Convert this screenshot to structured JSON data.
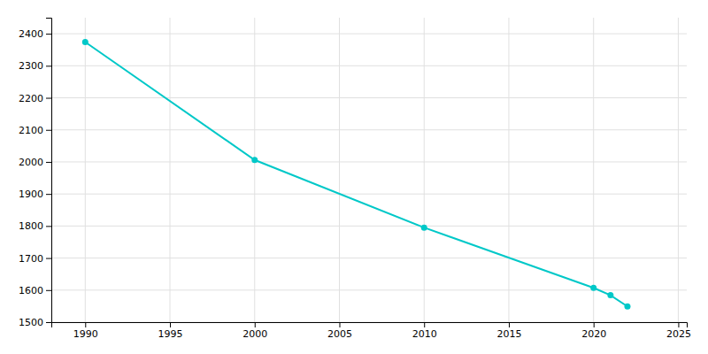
{
  "chart_data": {
    "type": "line",
    "x": [
      1990,
      2000,
      2010,
      2020,
      2021,
      2022
    ],
    "values": [
      2374,
      2006,
      1795,
      1607,
      1584,
      1549
    ],
    "color": "#00C8C8",
    "marker": "circle",
    "xlim": [
      1988,
      2025.5
    ],
    "ylim": [
      1500,
      2450
    ],
    "xticks": [
      1990,
      1995,
      2000,
      2005,
      2010,
      2015,
      2020,
      2025
    ],
    "yticks": [
      1500,
      1600,
      1700,
      1800,
      1900,
      2000,
      2100,
      2200,
      2300,
      2400
    ],
    "grid": true
  }
}
